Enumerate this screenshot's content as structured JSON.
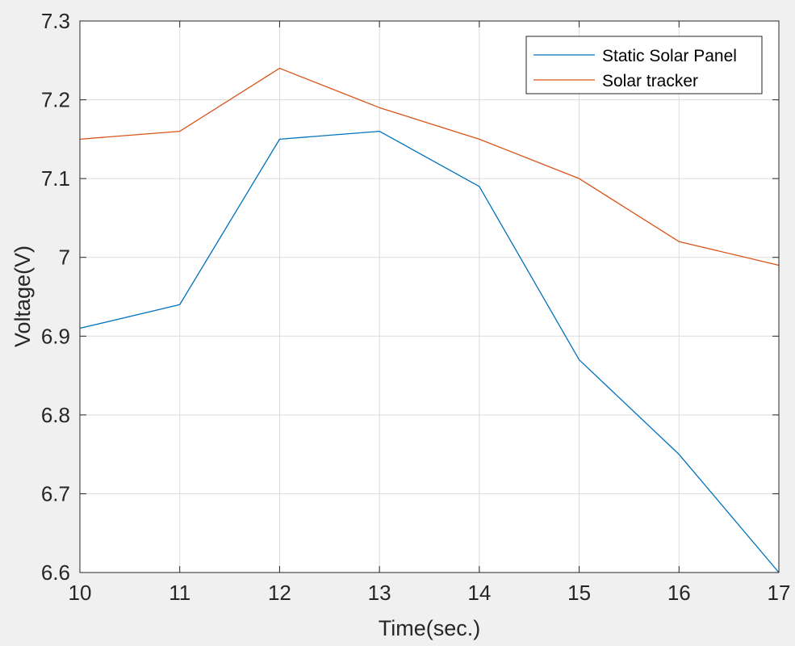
{
  "chart_data": {
    "type": "line",
    "title": "",
    "xlabel": "Time(sec.)",
    "ylabel": "Voltage(V)",
    "xlim": [
      10,
      17
    ],
    "ylim": [
      6.6,
      7.3
    ],
    "x": [
      10,
      11,
      12,
      13,
      14,
      15,
      16,
      17
    ],
    "xticks": [
      "10",
      "11",
      "12",
      "13",
      "14",
      "15",
      "16",
      "17"
    ],
    "yticks": [
      "6.6",
      "6.7",
      "6.8",
      "6.9",
      "7",
      "7.1",
      "7.2",
      "7.3"
    ],
    "grid": true,
    "legend_position": "top-right",
    "series": [
      {
        "name": "Static Solar Panel",
        "color": "#0072BD",
        "values": [
          6.91,
          6.94,
          7.15,
          7.16,
          7.09,
          6.87,
          6.75,
          6.6
        ]
      },
      {
        "name": "Solar tracker",
        "color": "#D95319",
        "values": [
          7.15,
          7.16,
          7.24,
          7.19,
          7.15,
          7.1,
          7.02,
          6.99
        ]
      }
    ]
  }
}
